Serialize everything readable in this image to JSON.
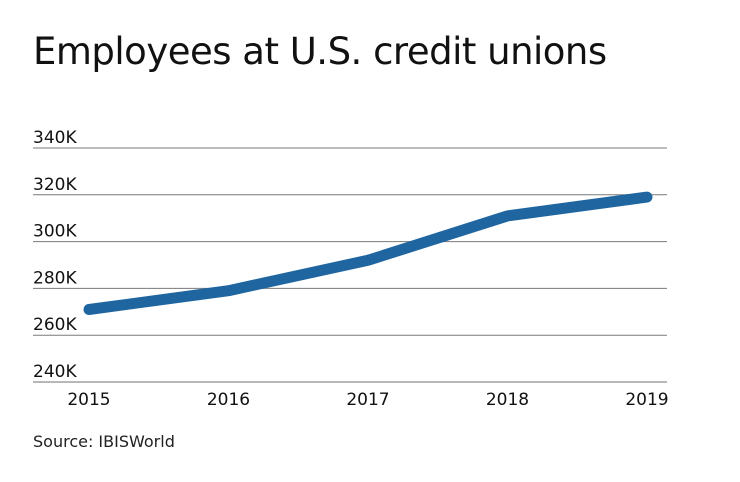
{
  "title": "Employees at U.S. credit unions",
  "source": "Source: IBISWorld",
  "colors": {
    "line": "#1f65a0",
    "grid": "#7a7a7a",
    "axis": "#b8b8b8",
    "text": "#111111"
  },
  "chart_data": {
    "type": "line",
    "title": "Employees at U.S. credit unions",
    "xlabel": "",
    "ylabel": "",
    "categories": [
      "2015",
      "2016",
      "2017",
      "2018",
      "2019"
    ],
    "series": [
      {
        "name": "Employees",
        "values": [
          271000,
          279000,
          292000,
          311000,
          319000
        ]
      }
    ],
    "y_ticks": [
      240000,
      260000,
      280000,
      300000,
      320000,
      340000
    ],
    "y_tick_labels": [
      "240K",
      "260K",
      "280K",
      "300K",
      "320K",
      "340K"
    ],
    "ylim": [
      240000,
      340000
    ],
    "grid": true,
    "legend": "none",
    "source": "Source: IBISWorld"
  }
}
